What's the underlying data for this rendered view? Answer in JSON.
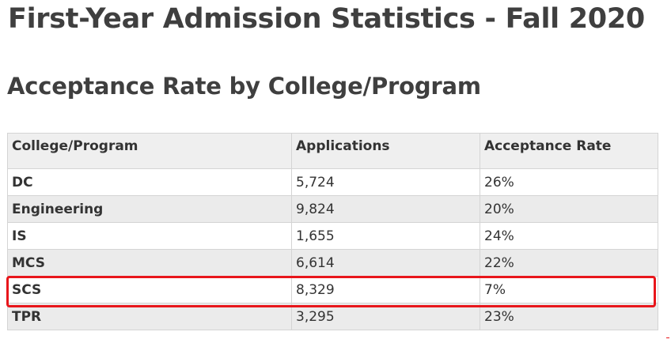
{
  "page": {
    "title": "First-Year Admission Statistics - Fall 2020",
    "subtitle": "Acceptance Rate by College/Program"
  },
  "table": {
    "headers": [
      "College/Program",
      "Applications",
      "Acceptance Rate"
    ],
    "rows": [
      {
        "program": "DC",
        "applications": "5,724",
        "rate": "26%"
      },
      {
        "program": "Engineering",
        "applications": "9,824",
        "rate": "20%"
      },
      {
        "program": "IS",
        "applications": "1,655",
        "rate": "24%"
      },
      {
        "program": "MCS",
        "applications": "6,614",
        "rate": "22%"
      },
      {
        "program": "SCS",
        "applications": "8,329",
        "rate": "7%"
      },
      {
        "program": "TPR",
        "applications": "3,295",
        "rate": "23%"
      }
    ],
    "highlighted_row": "SCS"
  },
  "colors": {
    "highlight": "#e8161b",
    "header_bg": "#efefef",
    "stripe_bg": "#ebebeb",
    "text": "#3f3f3f"
  }
}
